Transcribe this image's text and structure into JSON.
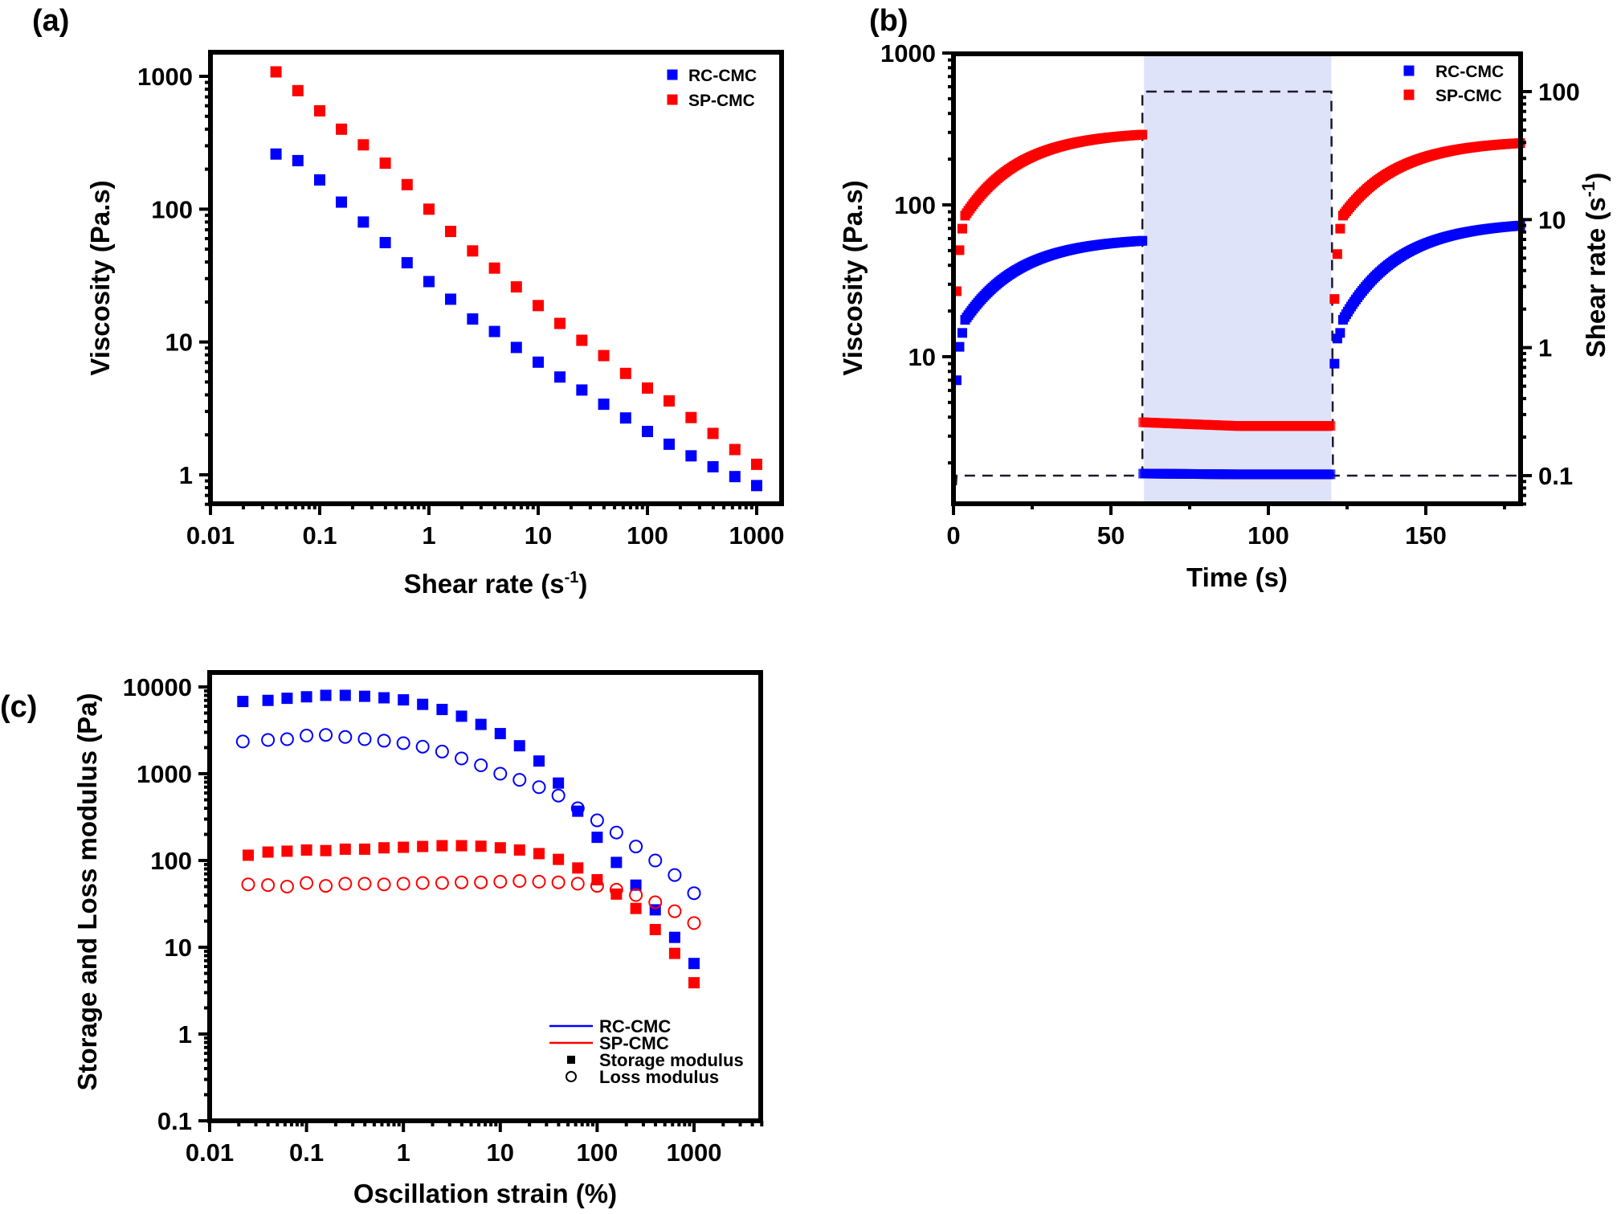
{
  "colors": {
    "rc_cmc": "#0000ff",
    "sp_cmc": "#ff0000",
    "shade": "#dfe3fa",
    "axis": "#000000",
    "dash": "#1a1a2e"
  },
  "chart_data": [
    {
      "id": "a",
      "panel_label": "(a)",
      "type": "scatter",
      "title": "",
      "xlabel": "Shear rate (s",
      "xlabel_sup": "-1",
      "xlabel_close": ")",
      "ylabel": "Viscosity (Pa.s)",
      "xscale": "log",
      "yscale": "log",
      "xlim": [
        0.01,
        1600
      ],
      "ylim": [
        0.6,
        1500
      ],
      "xticks": [
        0.01,
        0.1,
        1,
        10,
        100,
        1000
      ],
      "xtick_labels": [
        "0.01",
        "0.1",
        "1",
        "10",
        "100",
        "1000"
      ],
      "yticks": [
        1,
        10,
        100,
        1000
      ],
      "ytick_labels": [
        "1",
        "10",
        "100",
        "1000"
      ],
      "legend_position": "top-right",
      "grid": false,
      "x": [
        0.0398,
        0.0631,
        0.1,
        0.158,
        0.251,
        0.398,
        0.631,
        1,
        1.58,
        2.51,
        3.98,
        6.31,
        10,
        15.8,
        25.1,
        39.8,
        63.1,
        100,
        158,
        251,
        398,
        631,
        1000
      ],
      "series": [
        {
          "name": "RC-CMC",
          "marker": "square",
          "color_key": "rc_cmc",
          "values": [
            260,
            232,
            166,
            113,
            80,
            56,
            39.5,
            28.5,
            21,
            14.9,
            12,
            9.1,
            7.05,
            5.45,
            4.35,
            3.4,
            2.68,
            2.12,
            1.7,
            1.39,
            1.15,
            0.97,
            0.83
          ]
        },
        {
          "name": "SP-CMC",
          "marker": "square",
          "color_key": "sp_cmc",
          "values": [
            1080,
            780,
            550,
            400,
            305,
            222,
            153,
            100,
            68,
            48.5,
            36,
            26,
            18.8,
            13.8,
            10.3,
            7.9,
            5.8,
            4.5,
            3.6,
            2.7,
            2.05,
            1.55,
            1.2
          ]
        }
      ]
    },
    {
      "id": "b",
      "panel_label": "(b)",
      "type": "scatter",
      "title": "",
      "xlabel": "Time (s)",
      "ylabel": "Viscosity (Pa.s)",
      "ylabel_right": "Shear rate (s",
      "ylabel_right_sup": "-1",
      "ylabel_right_close": ")",
      "xscale": "linear",
      "yscale": "log",
      "y2scale": "log",
      "xlim": [
        0,
        180
      ],
      "ylim": [
        1.07,
        1000
      ],
      "y2lim": [
        0.06,
        190
      ],
      "xticks": [
        0,
        50,
        100,
        150
      ],
      "xtick_labels": [
        "0",
        "50",
        "100",
        "150"
      ],
      "yticks": [
        10,
        100,
        1000
      ],
      "ytick_labels": [
        "10",
        "100",
        "1000"
      ],
      "y2ticks": [
        0.1,
        1,
        10,
        100
      ],
      "y2tick_labels": [
        "0.1",
        "1",
        "10",
        "100"
      ],
      "shaded_interval": [
        60.5,
        120
      ],
      "shear_rate_profile": {
        "segments": [
          {
            "t": [
              0,
              60
            ],
            "rate": 0.1
          },
          {
            "t": [
              60,
              120
            ],
            "rate": 100
          },
          {
            "t": [
              120,
              180
            ],
            "rate": 0.1
          }
        ],
        "style": "dashed"
      },
      "legend_position": "top-right",
      "grid": false,
      "series": [
        {
          "name": "RC-CMC",
          "marker": "square",
          "color_key": "rc_cmc",
          "phases": [
            {
              "t_start": 1,
              "t_end": 60,
              "v_start": 7.0,
              "v_knee": 17.5,
              "v_end": 58,
              "shape": "recovery"
            },
            {
              "t_start": 60,
              "t_end": 120,
              "v_start": 1.7,
              "v_end": 1.68,
              "shape": "flat"
            },
            {
              "t_start": 121,
              "t_end": 180,
              "v_start": 9.0,
              "v_knee": 17.5,
              "v_end": 73,
              "shape": "recovery"
            }
          ]
        },
        {
          "name": "SP-CMC",
          "marker": "square",
          "color_key": "sp_cmc",
          "phases": [
            {
              "t_start": 1,
              "t_end": 60,
              "v_start": 27,
              "v_knee": 85,
              "v_end": 290,
              "shape": "recovery"
            },
            {
              "t_start": 60,
              "t_end": 120,
              "v_start": 3.7,
              "v_end": 3.5,
              "shape": "flat"
            },
            {
              "t_start": 121,
              "t_end": 180,
              "v_start": 24,
              "v_knee": 85,
              "v_end": 255,
              "shape": "recovery"
            }
          ]
        }
      ]
    },
    {
      "id": "c",
      "panel_label": "(c)",
      "type": "scatter",
      "title": "",
      "xlabel": "Oscillation strain (%)",
      "ylabel": "Storage and Loss modulus (Pa)",
      "xscale": "log",
      "yscale": "log",
      "xlim": [
        0.01,
        5000
      ],
      "ylim": [
        0.1,
        14000
      ],
      "xticks": [
        0.01,
        0.1,
        1,
        10,
        100,
        1000
      ],
      "xtick_labels": [
        "0.01",
        "0.1",
        "1",
        "10",
        "100",
        "1000"
      ],
      "yticks": [
        0.1,
        1,
        10,
        100,
        1000,
        10000
      ],
      "ytick_labels": [
        "0.1",
        "1",
        "10",
        "100",
        "1000",
        "10000"
      ],
      "legend_position": "bottom-right",
      "legend": [
        {
          "label": "RC-CMC",
          "symbol": "line",
          "color_key": "rc_cmc"
        },
        {
          "label": "SP-CMC",
          "symbol": "line",
          "color_key": "sp_cmc"
        },
        {
          "label": "Storage modulus",
          "symbol": "filled-square",
          "color_key": "axis"
        },
        {
          "label": "Loss modulus",
          "symbol": "open-circle",
          "color_key": "axis"
        }
      ],
      "grid": false,
      "series": [
        {
          "name": "RC-CMC Storage modulus",
          "marker": "filled-square",
          "color_key": "rc_cmc",
          "x": [
            0.022,
            0.04,
            0.063,
            0.1,
            0.158,
            0.251,
            0.398,
            0.631,
            1,
            1.58,
            2.51,
            3.98,
            6.31,
            10,
            15.8,
            25.1,
            39.8,
            63.1,
            100,
            158,
            251,
            398,
            631,
            1000
          ],
          "values": [
            6800,
            7000,
            7400,
            7700,
            8000,
            8000,
            7800,
            7500,
            7100,
            6300,
            5500,
            4600,
            3700,
            2900,
            2100,
            1400,
            780,
            370,
            185,
            95,
            52,
            27,
            13,
            6.5
          ]
        },
        {
          "name": "RC-CMC Loss modulus",
          "marker": "open-circle",
          "color_key": "rc_cmc",
          "x": [
            0.022,
            0.04,
            0.063,
            0.1,
            0.158,
            0.251,
            0.398,
            0.631,
            1,
            1.58,
            2.51,
            3.98,
            6.31,
            10,
            15.8,
            25.1,
            39.8,
            63.1,
            100,
            158,
            251,
            398,
            631,
            1000
          ],
          "values": [
            2350,
            2450,
            2500,
            2750,
            2800,
            2650,
            2500,
            2400,
            2250,
            2050,
            1800,
            1500,
            1250,
            1000,
            850,
            700,
            560,
            400,
            290,
            210,
            145,
            100,
            68,
            42
          ]
        },
        {
          "name": "SP-CMC Storage modulus",
          "marker": "filled-square",
          "color_key": "sp_cmc",
          "x": [
            0.025,
            0.04,
            0.063,
            0.1,
            0.158,
            0.251,
            0.398,
            0.631,
            1,
            1.58,
            2.51,
            3.98,
            6.31,
            10,
            15.8,
            25.1,
            39.8,
            63.1,
            100,
            158,
            251,
            398,
            631,
            1000
          ],
          "values": [
            115,
            125,
            128,
            132,
            130,
            135,
            135,
            140,
            142,
            145,
            148,
            148,
            146,
            140,
            132,
            120,
            103,
            82,
            60,
            41,
            28,
            16,
            8.5,
            3.9
          ]
        },
        {
          "name": "SP-CMC Loss modulus",
          "marker": "open-circle",
          "color_key": "sp_cmc",
          "x": [
            0.025,
            0.04,
            0.063,
            0.1,
            0.158,
            0.251,
            0.398,
            0.631,
            1,
            1.58,
            2.51,
            3.98,
            6.31,
            10,
            15.8,
            25.1,
            39.8,
            63.1,
            100,
            158,
            251,
            398,
            631,
            1000
          ],
          "values": [
            53,
            52,
            50,
            55,
            51,
            54,
            54,
            53,
            54,
            55,
            55,
            56,
            56,
            57,
            58,
            57,
            56,
            54,
            51,
            46,
            40,
            33,
            26,
            19
          ]
        }
      ]
    }
  ]
}
